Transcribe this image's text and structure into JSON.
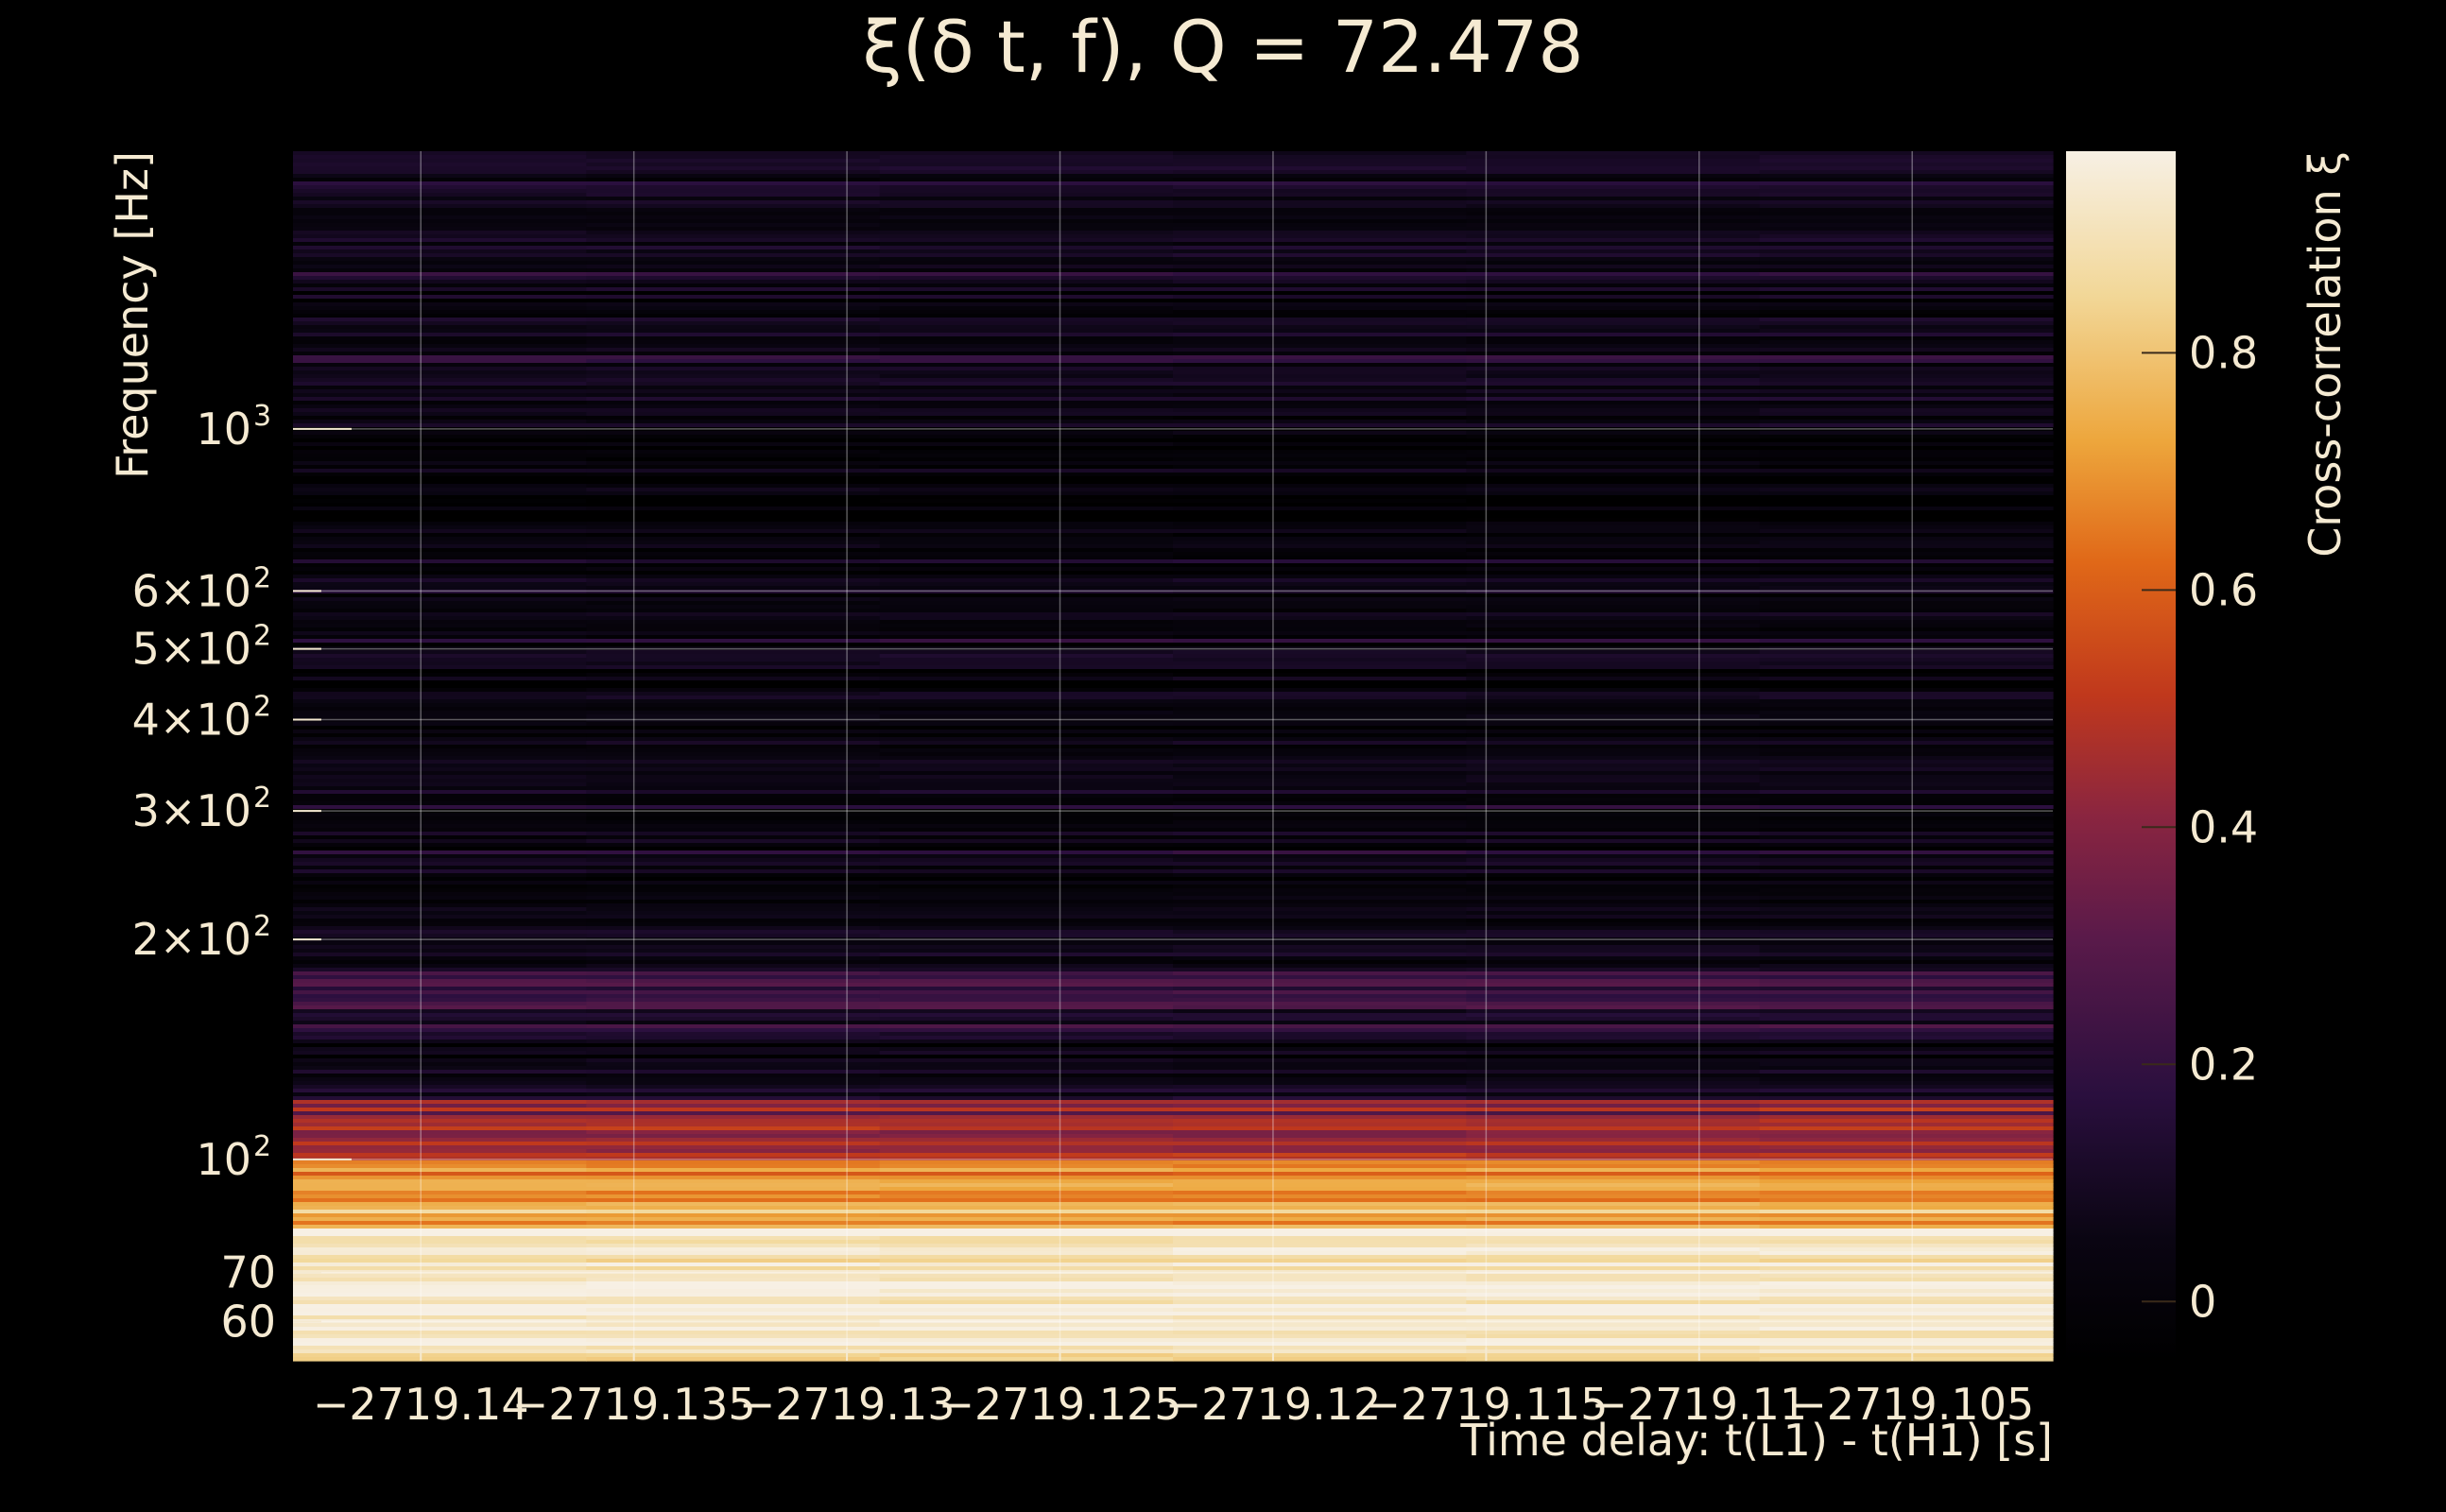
{
  "chart_data": {
    "type": "heatmap",
    "title": "ξ(δ t, f), Q = 72.478",
    "xlabel": "Time delay: t(L1) - t(H1) [s]",
    "ylabel": "Frequency [Hz]",
    "colorbar_label": "Cross-correlation ξ",
    "colormap": "inferno",
    "xlim": [
      -2719.143,
      -2719.1017
    ],
    "ylim": [
      53,
      2400
    ],
    "yscale": "log",
    "clim": [
      -0.05,
      0.97
    ],
    "grid": true,
    "x_ticks": [
      {
        "value": -2719.14,
        "label": "−2719.14"
      },
      {
        "value": -2719.135,
        "label": "−2719.135"
      },
      {
        "value": -2719.13,
        "label": "−2719.13"
      },
      {
        "value": -2719.125,
        "label": "−2719.125"
      },
      {
        "value": -2719.12,
        "label": "−2719.12"
      },
      {
        "value": -2719.115,
        "label": "−2719.115"
      },
      {
        "value": -2719.11,
        "label": "−2719.11"
      },
      {
        "value": -2719.105,
        "label": "−2719.105"
      }
    ],
    "y_major_ticks": [
      {
        "value": 100,
        "base": "10",
        "exp": "2"
      },
      {
        "value": 1000,
        "base": "10",
        "exp": "3"
      }
    ],
    "y_minor_ticks": [
      {
        "value": 60,
        "base": "60",
        "exp": ""
      },
      {
        "value": 70,
        "base": "70",
        "exp": ""
      },
      {
        "value": 200,
        "base": "2×10",
        "exp": "2"
      },
      {
        "value": 300,
        "base": "3×10",
        "exp": "2"
      },
      {
        "value": 400,
        "base": "4×10",
        "exp": "2"
      },
      {
        "value": 500,
        "base": "5×10",
        "exp": "2"
      },
      {
        "value": 600,
        "base": "6×10",
        "exp": "2"
      }
    ],
    "colorbar_ticks": [
      0,
      0.2,
      0.4,
      0.6,
      0.8
    ],
    "frequency_bands": [
      {
        "f_low": 53,
        "f_high": 60,
        "xi": 0.9
      },
      {
        "f_low": 60,
        "f_high": 80,
        "xi": 0.93
      },
      {
        "f_low": 80,
        "f_high": 100,
        "xi": 0.7
      },
      {
        "f_low": 100,
        "f_high": 120,
        "xi": 0.45
      },
      {
        "f_low": 120,
        "f_high": 160,
        "xi": 0.1
      },
      {
        "f_low": 160,
        "f_high": 180,
        "xi": 0.25
      },
      {
        "f_low": 180,
        "f_high": 600,
        "xi": 0.05
      },
      {
        "f_low": 600,
        "f_high": 1000,
        "xi": 0.0
      },
      {
        "f_low": 1000,
        "f_high": 2400,
        "xi": 0.06
      }
    ]
  }
}
